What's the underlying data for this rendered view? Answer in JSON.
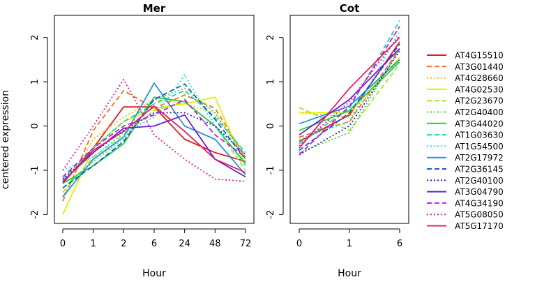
{
  "ylabel": "centered expression",
  "chart_data": [
    {
      "type": "line",
      "title": "Mer",
      "xlabel": "Hour",
      "ylabel": "centered expression",
      "categories": [
        "0",
        "1",
        "2",
        "6",
        "24",
        "48",
        "72"
      ],
      "ylim": [
        -2.2,
        2.5
      ],
      "yticks": [
        -2,
        -1,
        0,
        1,
        2
      ],
      "series": [
        {
          "name": "AT4G15510",
          "values": [
            -1.3,
            -0.5,
            0.43,
            0.43,
            -0.3,
            -0.6,
            -0.8
          ]
        },
        {
          "name": "AT3G01440",
          "values": [
            -1.7,
            -0.1,
            0.8,
            0.4,
            0.7,
            0.4,
            -0.7
          ]
        },
        {
          "name": "AT4G28660",
          "values": [
            -1.6,
            -0.3,
            0.2,
            0.6,
            0.5,
            0.3,
            -0.75
          ]
        },
        {
          "name": "AT4G02530",
          "values": [
            -2.0,
            -0.5,
            0.1,
            0.4,
            0.5,
            0.65,
            -0.9
          ]
        },
        {
          "name": "AT2G23670",
          "values": [
            -1.5,
            -0.7,
            -0.2,
            0.35,
            0.55,
            0.0,
            -1.0
          ]
        },
        {
          "name": "AT2G40400",
          "values": [
            -1.4,
            -0.8,
            -0.3,
            0.6,
            0.85,
            0.3,
            -0.7
          ]
        },
        {
          "name": "AT3G44020",
          "values": [
            -1.3,
            -0.9,
            -0.4,
            0.65,
            0.55,
            0.0,
            -0.85
          ]
        },
        {
          "name": "AT1G03630",
          "values": [
            -1.2,
            -0.5,
            0.1,
            0.5,
            0.8,
            0.2,
            -0.6
          ]
        },
        {
          "name": "AT1G54500",
          "values": [
            -1.0,
            -0.7,
            -0.15,
            0.2,
            1.15,
            0.0,
            -0.9
          ]
        },
        {
          "name": "AT2G17972",
          "values": [
            -1.6,
            -0.75,
            -0.25,
            0.97,
            0.0,
            -0.3,
            -1.1
          ]
        },
        {
          "name": "AT2G36145",
          "values": [
            -1.4,
            -0.9,
            -0.35,
            0.6,
            0.95,
            0.15,
            -0.75
          ]
        },
        {
          "name": "AT2G40100",
          "values": [
            -1.2,
            -0.6,
            -0.1,
            0.3,
            0.3,
            0.0,
            -0.65
          ]
        },
        {
          "name": "AT3G04790",
          "values": [
            -1.25,
            -0.6,
            -0.05,
            0.0,
            0.25,
            -0.75,
            -1.15
          ]
        },
        {
          "name": "AT4G34190",
          "values": [
            -1.15,
            -0.5,
            0.0,
            0.25,
            0.6,
            -0.2,
            -0.7
          ]
        },
        {
          "name": "AT5G08050",
          "values": [
            -1.0,
            0.0,
            1.05,
            -0.2,
            -0.75,
            -1.2,
            -1.25
          ]
        },
        {
          "name": "AT5G17170",
          "values": [
            -1.28,
            -0.55,
            -0.12,
            0.45,
            -0.12,
            -0.75,
            -1.05
          ]
        }
      ]
    },
    {
      "type": "line",
      "title": "Cot",
      "xlabel": "Hour",
      "categories": [
        "0",
        "1",
        "6"
      ],
      "ylim": [
        -2.2,
        2.5
      ],
      "yticks": [
        -2,
        -1,
        0,
        1,
        2
      ],
      "series": [
        {
          "name": "AT4G15510",
          "values": [
            -0.35,
            0.25,
            1.9
          ]
        },
        {
          "name": "AT3G01440",
          "values": [
            -0.25,
            0.1,
            1.75
          ]
        },
        {
          "name": "AT4G28660",
          "values": [
            0.3,
            0.2,
            1.5
          ]
        },
        {
          "name": "AT4G02530",
          "values": [
            0.3,
            0.3,
            1.55
          ]
        },
        {
          "name": "AT2G23670",
          "values": [
            0.42,
            -0.1,
            1.4
          ]
        },
        {
          "name": "AT2G40400",
          "values": [
            -0.6,
            -0.15,
            1.75
          ]
        },
        {
          "name": "AT3G44020",
          "values": [
            -0.1,
            0.35,
            1.45
          ]
        },
        {
          "name": "AT1G03630",
          "values": [
            -0.4,
            0.4,
            2.38
          ]
        },
        {
          "name": "AT1G54500",
          "values": [
            -0.3,
            0.1,
            2.15
          ]
        },
        {
          "name": "AT2G17972",
          "values": [
            0.05,
            0.45,
            1.5
          ]
        },
        {
          "name": "AT2G36145",
          "values": [
            -0.55,
            0.3,
            1.85
          ]
        },
        {
          "name": "AT2G40100",
          "values": [
            -0.65,
            0.0,
            1.7
          ]
        },
        {
          "name": "AT3G04790",
          "values": [
            -0.2,
            0.6,
            1.75
          ]
        },
        {
          "name": "AT4G34190",
          "values": [
            -0.65,
            0.45,
            2.25
          ]
        },
        {
          "name": "AT5G08050",
          "values": [
            -0.45,
            0.55,
            2.05
          ]
        },
        {
          "name": "AT5G17170",
          "values": [
            -0.5,
            0.85,
            2.0
          ]
        }
      ]
    }
  ],
  "legend": {
    "placement": "right",
    "items": [
      {
        "name": "AT4G15510",
        "color": "#e41a1c",
        "dash": "solid"
      },
      {
        "name": "AT3G01440",
        "color": "#f26d24",
        "dash": "dashed"
      },
      {
        "name": "AT4G28660",
        "color": "#f5b800",
        "dash": "dotted"
      },
      {
        "name": "AT4G02530",
        "color": "#e3ee00",
        "dash": "solid"
      },
      {
        "name": "AT2G23670",
        "color": "#9be82a",
        "dash": "dashed"
      },
      {
        "name": "AT2G40400",
        "color": "#3fdc28",
        "dash": "dotted"
      },
      {
        "name": "AT3G44020",
        "color": "#1ecf3d",
        "dash": "solid"
      },
      {
        "name": "AT1G03630",
        "color": "#1ed6a6",
        "dash": "dashed"
      },
      {
        "name": "AT1G54500",
        "color": "#1ee6e0",
        "dash": "dotted"
      },
      {
        "name": "AT2G17972",
        "color": "#1e98d8",
        "dash": "solid"
      },
      {
        "name": "AT2G36145",
        "color": "#1e4fd8",
        "dash": "dashed"
      },
      {
        "name": "AT2G40100",
        "color": "#2a1ec8",
        "dash": "dotted"
      },
      {
        "name": "AT3G04790",
        "color": "#6a1ed2",
        "dash": "solid"
      },
      {
        "name": "AT4G34190",
        "color": "#c01ed8",
        "dash": "dashed"
      },
      {
        "name": "AT5G08050",
        "color": "#e01ea0",
        "dash": "dotted"
      },
      {
        "name": "AT5G17170",
        "color": "#e21e63",
        "dash": "solid"
      }
    ]
  }
}
